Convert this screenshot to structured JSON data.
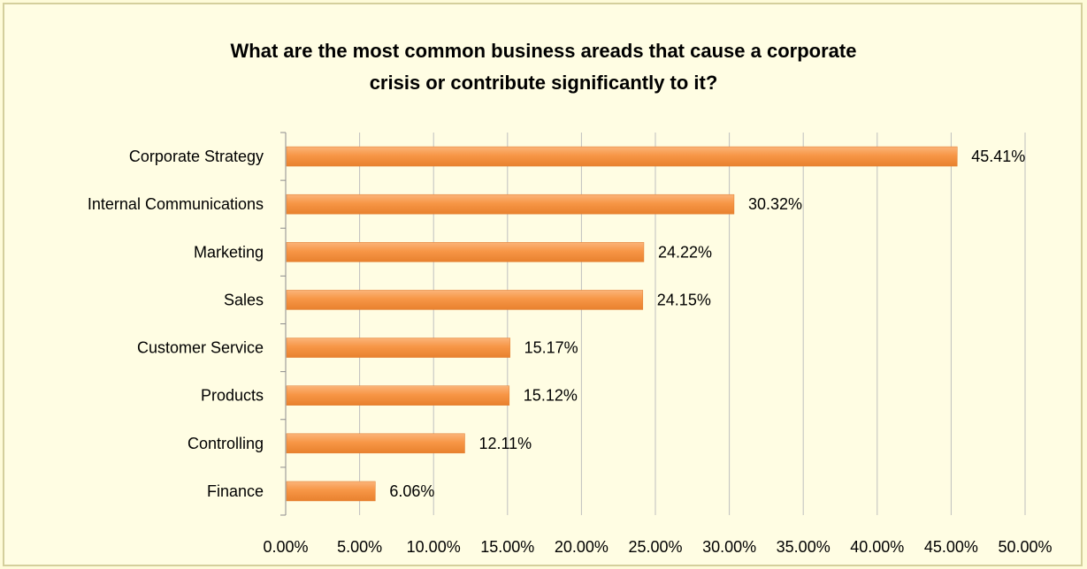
{
  "chart_data": {
    "type": "bar",
    "orientation": "horizontal",
    "title_lines": [
      "What are the most common business areads that cause a corporate",
      "crisis or contribute significantly to it?"
    ],
    "categories": [
      "Corporate Strategy",
      "Internal Communications",
      "Marketing",
      "Sales",
      "Customer Service",
      "Products",
      "Controlling",
      "Finance"
    ],
    "values": [
      45.41,
      30.32,
      24.22,
      24.15,
      15.17,
      15.12,
      12.11,
      6.06
    ],
    "value_labels": [
      "45.41%",
      "30.32%",
      "24.22%",
      "24.15%",
      "15.17%",
      "15.12%",
      "12.11%",
      "6.06%"
    ],
    "x_ticks": [
      0,
      5,
      10,
      15,
      20,
      25,
      30,
      35,
      40,
      45,
      50
    ],
    "x_tick_labels": [
      "0.00%",
      "5.00%",
      "10.00%",
      "15.00%",
      "20.00%",
      "25.00%",
      "30.00%",
      "35.00%",
      "40.00%",
      "45.00%",
      "50.00%"
    ],
    "xlim": [
      0,
      50
    ],
    "xlabel": "",
    "ylabel": "",
    "grid": "vertical",
    "legend": "none",
    "colors": {
      "bar": "#f79646",
      "bar_highlight": "#fbb47a",
      "background": "#fffde3",
      "grid": "#bfbfbf"
    }
  }
}
